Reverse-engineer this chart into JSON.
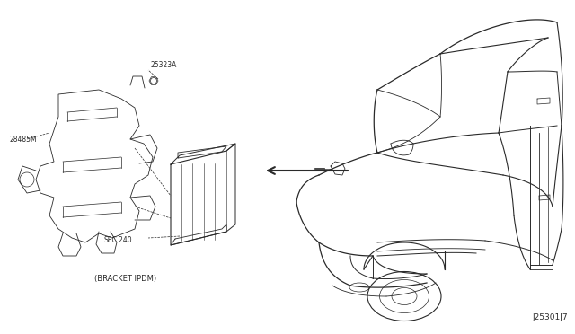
{
  "bg_color": "#ffffff",
  "fig_width": 6.4,
  "fig_height": 3.72,
  "dpi": 100,
  "label_25323A": "25323A",
  "label_28485M": "28485M",
  "label_SEC240": "SEC.240",
  "label_BRACKET": "(BRACKET IPDM)",
  "label_ref": "J25301J7",
  "font_size_labels": 5.5,
  "font_size_ref": 6.5,
  "line_color": "#2a2a2a",
  "text_color": "#2a2a2a"
}
